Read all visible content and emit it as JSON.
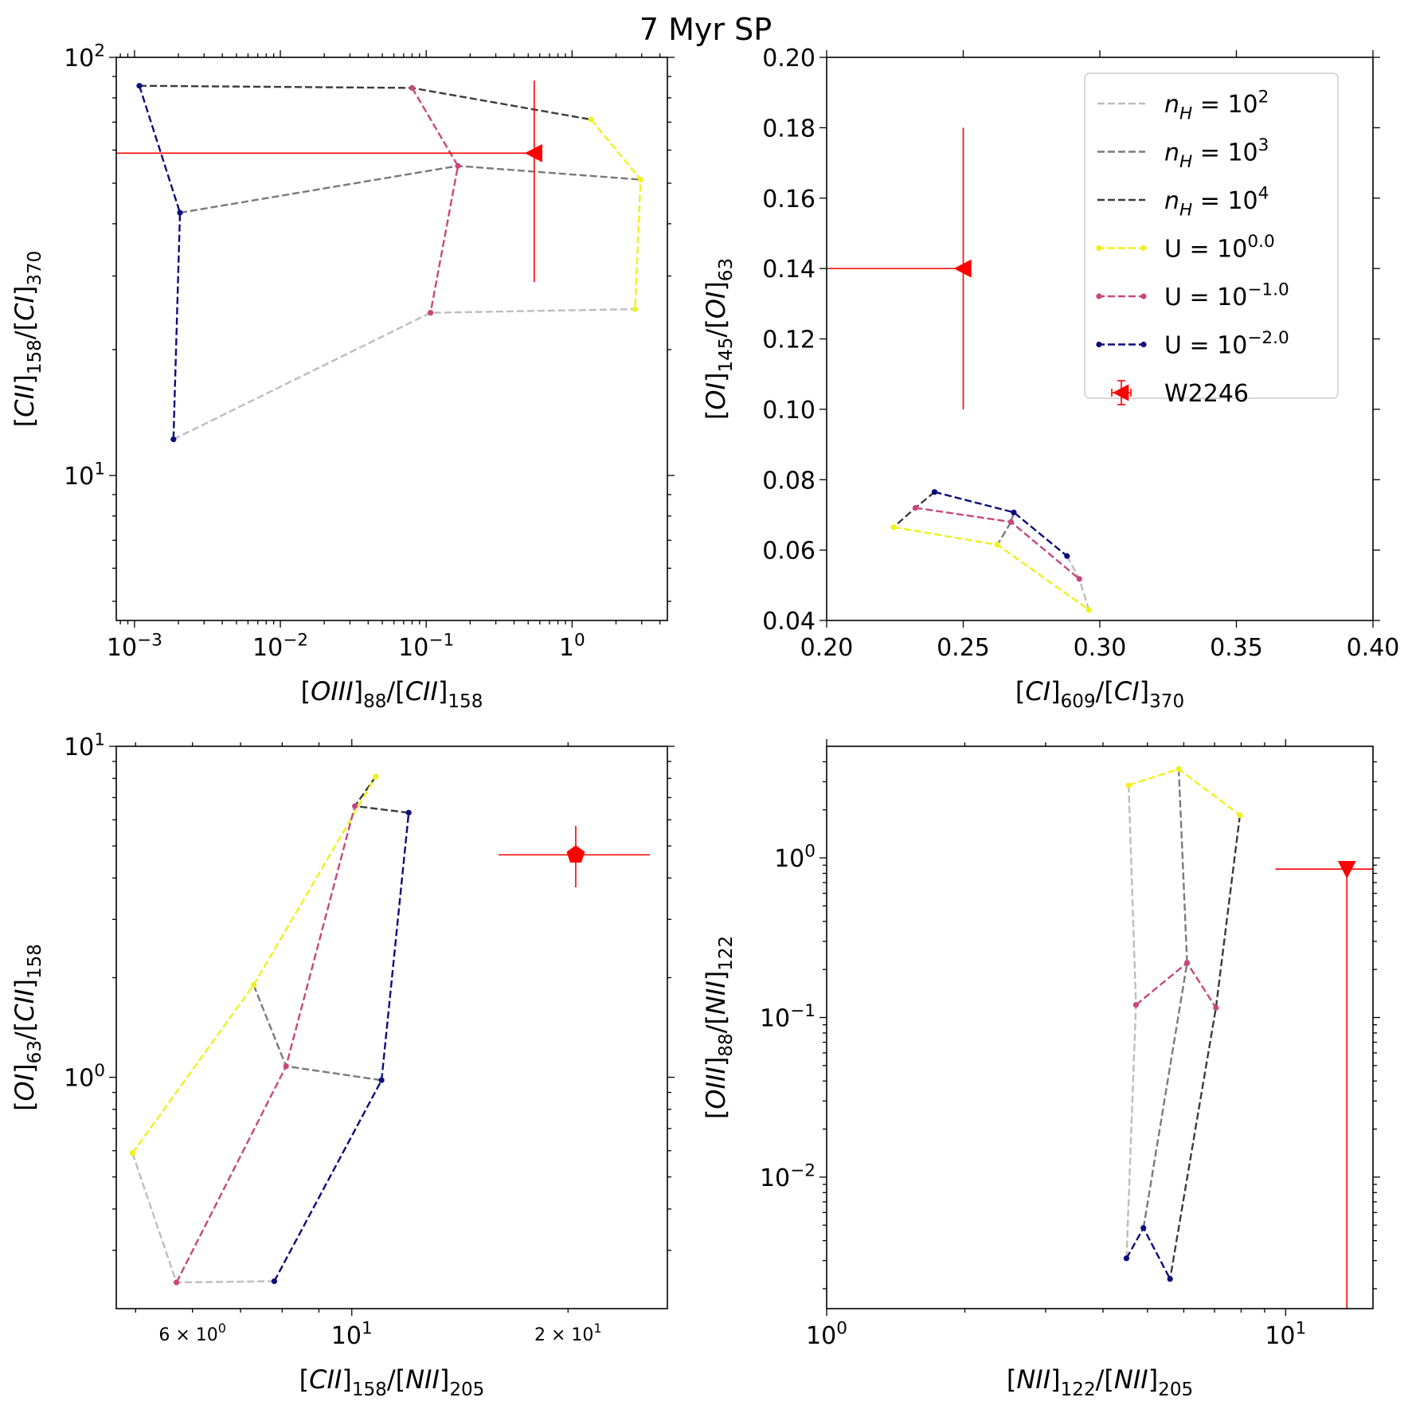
{
  "figure_title": "7 Myr SP",
  "chart_data": [
    {
      "id": "p1",
      "type": "line",
      "xscale": "log",
      "yscale": "log",
      "xlim": [
        0.00075,
        4.5
      ],
      "ylim": [
        4.5,
        100
      ],
      "xticks": [
        0.001,
        0.01,
        0.1,
        1
      ],
      "yticks": [
        10,
        100
      ],
      "xtick_labels": [
        [
          "10",
          "−3"
        ],
        [
          "10",
          "−2"
        ],
        [
          "10",
          "−1"
        ],
        [
          "1",
          "0"
        ]
      ],
      "ytick_labels": [
        [
          "10",
          "1"
        ],
        [
          "10",
          "2"
        ]
      ],
      "xlabel": [
        [
          "[",
          "n"
        ],
        [
          "OIII",
          "i"
        ],
        [
          "]",
          "n"
        ],
        [
          "88",
          "sub"
        ],
        [
          "/[",
          "n"
        ],
        [
          "CII",
          "i"
        ],
        [
          "]",
          "n"
        ],
        [
          "158",
          "sub"
        ]
      ],
      "ylabel": [
        [
          "[",
          "n"
        ],
        [
          "CII",
          "i"
        ],
        [
          "]",
          "n"
        ],
        [
          "158",
          "sub"
        ],
        [
          "/[",
          "n"
        ],
        [
          "CI",
          "i"
        ],
        [
          "]",
          "n"
        ],
        [
          "370",
          "sub"
        ]
      ],
      "lines": [
        {
          "group": "n",
          "color": "#bdbdbd",
          "points": [
            [
              0.00185,
              12.2
            ],
            [
              0.107,
              24.5
            ],
            [
              2.7,
              25.0
            ]
          ]
        },
        {
          "group": "n",
          "color": "#7a7a7a",
          "points": [
            [
              0.00205,
              42.5
            ],
            [
              0.165,
              55.0
            ],
            [
              2.95,
              51.0
            ]
          ]
        },
        {
          "group": "n",
          "color": "#3b3b3b",
          "points": [
            [
              0.00108,
              85.5
            ],
            [
              0.08,
              84.5
            ],
            [
              1.35,
              71.0
            ]
          ]
        },
        {
          "group": "U",
          "color": "#f0f01e",
          "points": [
            [
              1.35,
              71.0
            ],
            [
              2.95,
              51.0
            ],
            [
              2.7,
              25.0
            ]
          ]
        },
        {
          "group": "U",
          "color": "#c8477a",
          "points": [
            [
              0.08,
              84.5
            ],
            [
              0.165,
              55.0
            ],
            [
              0.107,
              24.5
            ]
          ]
        },
        {
          "group": "U",
          "color": "#0c0c7c",
          "points": [
            [
              0.00108,
              85.5
            ],
            [
              0.00205,
              42.5
            ],
            [
              0.00185,
              12.2
            ]
          ]
        }
      ],
      "obs": {
        "x": 0.55,
        "y": 59.0,
        "marker": "triangle-left",
        "xerr_lo": 0.00075,
        "xerr_hi": 0.55,
        "yerr_lo": 29.0,
        "yerr_hi": 88.0
      }
    },
    {
      "id": "p2",
      "type": "line",
      "xscale": "linear",
      "yscale": "linear",
      "xlim": [
        0.2,
        0.4
      ],
      "ylim": [
        0.04,
        0.2
      ],
      "xticks": [
        0.2,
        0.25,
        0.3,
        0.35,
        0.4
      ],
      "yticks": [
        0.04,
        0.06,
        0.08,
        0.1,
        0.12,
        0.14,
        0.16,
        0.18,
        0.2
      ],
      "xtick_labels": [
        [
          "0.20"
        ],
        [
          "0.25"
        ],
        [
          "0.30"
        ],
        [
          "0.35"
        ],
        [
          "0.40"
        ]
      ],
      "ytick_labels": [
        [
          "0.04"
        ],
        [
          "0.06"
        ],
        [
          "0.08"
        ],
        [
          "0.10"
        ],
        [
          "0.12"
        ],
        [
          "0.14"
        ],
        [
          "0.16"
        ],
        [
          "0.18"
        ],
        [
          "0.20"
        ]
      ],
      "xlabel": [
        [
          "[",
          "n"
        ],
        [
          "CI",
          "i"
        ],
        [
          "]",
          "n"
        ],
        [
          "609",
          "sub"
        ],
        [
          "/[",
          "n"
        ],
        [
          "CI",
          "i"
        ],
        [
          "]",
          "n"
        ],
        [
          "370",
          "sub"
        ]
      ],
      "ylabel": [
        [
          "[",
          "n"
        ],
        [
          "OI",
          "i"
        ],
        [
          "]",
          "n"
        ],
        [
          "145",
          "sub"
        ],
        [
          "/[",
          "n"
        ],
        [
          "OI",
          "i"
        ],
        [
          "]",
          "n"
        ],
        [
          "63",
          "sub"
        ]
      ],
      "lines": [
        {
          "group": "n",
          "color": "#bdbdbd",
          "points": [
            [
              0.288,
              0.0583
            ],
            [
              0.2925,
              0.0518
            ],
            [
              0.296,
              0.043
            ]
          ]
        },
        {
          "group": "n",
          "color": "#7a7a7a",
          "points": [
            [
              0.2685,
              0.0707
            ],
            [
              0.2675,
              0.068
            ],
            [
              0.2625,
              0.0615
            ]
          ]
        },
        {
          "group": "n",
          "color": "#3b3b3b",
          "points": [
            [
              0.2395,
              0.0765
            ],
            [
              0.2325,
              0.072
            ],
            [
              0.2245,
              0.0665
            ]
          ]
        },
        {
          "group": "U",
          "color": "#f0f01e",
          "points": [
            [
              0.2245,
              0.0665
            ],
            [
              0.2625,
              0.0615
            ],
            [
              0.296,
              0.043
            ]
          ]
        },
        {
          "group": "U",
          "color": "#c8477a",
          "points": [
            [
              0.2325,
              0.072
            ],
            [
              0.2675,
              0.068
            ],
            [
              0.2925,
              0.0518
            ]
          ]
        },
        {
          "group": "U",
          "color": "#0c0c7c",
          "points": [
            [
              0.2395,
              0.0765
            ],
            [
              0.2685,
              0.0707
            ],
            [
              0.288,
              0.0583
            ]
          ]
        }
      ],
      "obs": {
        "x": 0.25,
        "y": 0.14,
        "marker": "triangle-left",
        "xerr_lo": 0.2,
        "xerr_hi": 0.25,
        "yerr_lo": 0.1,
        "yerr_hi": 0.18
      },
      "legend": {
        "placement": "top-right",
        "entries": [
          {
            "kind": "line",
            "color": "#bdbdbd",
            "label": [
              [
                "n",
                "i"
              ],
              [
                "H",
                "sub-i"
              ],
              [
                " = 10",
                "n"
              ],
              [
                "2",
                "sup"
              ]
            ]
          },
          {
            "kind": "line",
            "color": "#7a7a7a",
            "label": [
              [
                "n",
                "i"
              ],
              [
                "H",
                "sub-i"
              ],
              [
                " = 10",
                "n"
              ],
              [
                "3",
                "sup"
              ]
            ]
          },
          {
            "kind": "line",
            "color": "#3b3b3b",
            "label": [
              [
                "n",
                "i"
              ],
              [
                "H",
                "sub-i"
              ],
              [
                " = 10",
                "n"
              ],
              [
                "4",
                "sup"
              ]
            ]
          },
          {
            "kind": "linepoint",
            "color": "#f0f01e",
            "label": [
              [
                "U = 10",
                "n"
              ],
              [
                "0.0",
                "sup"
              ]
            ]
          },
          {
            "kind": "linepoint",
            "color": "#c8477a",
            "label": [
              [
                "U = 10",
                "n"
              ],
              [
                "−1.0",
                "sup"
              ]
            ]
          },
          {
            "kind": "linepoint",
            "color": "#0c0c7c",
            "label": [
              [
                "U = 10",
                "n"
              ],
              [
                "−2.0",
                "sup"
              ]
            ]
          },
          {
            "kind": "obs",
            "color": "#ff0000",
            "label": [
              [
                "W2246",
                "n"
              ]
            ]
          }
        ]
      }
    },
    {
      "id": "p3",
      "type": "line",
      "xscale": "log",
      "yscale": "log",
      "xlim": [
        4.7,
        27.5
      ],
      "ylim": [
        0.2,
        10
      ],
      "xticks": [
        10
      ],
      "yticks": [
        1,
        10
      ],
      "xticks_minor": [
        6,
        20
      ],
      "xtick_labels": [
        [
          "10",
          "1"
        ]
      ],
      "xminor_labels": [
        [
          "6 × 10",
          "0"
        ],
        [
          "2 × 10",
          "1"
        ]
      ],
      "ytick_labels": [
        [
          "10",
          "0"
        ],
        [
          "10",
          "1"
        ]
      ],
      "xlabel": [
        [
          "[",
          "n"
        ],
        [
          "CII",
          "i"
        ],
        [
          "]",
          "n"
        ],
        [
          "158",
          "sub"
        ],
        [
          "/[",
          "n"
        ],
        [
          "NII",
          "i"
        ],
        [
          "]",
          "n"
        ],
        [
          "205",
          "sub"
        ]
      ],
      "ylabel": [
        [
          "[",
          "n"
        ],
        [
          "OI",
          "i"
        ],
        [
          "]",
          "n"
        ],
        [
          "63",
          "sub"
        ],
        [
          "/[",
          "n"
        ],
        [
          "CII",
          "i"
        ],
        [
          "]",
          "n"
        ],
        [
          "158",
          "sub"
        ]
      ],
      "lines": [
        {
          "group": "n",
          "color": "#bdbdbd",
          "points": [
            [
              4.95,
              0.59
            ],
            [
              5.7,
              0.24
            ],
            [
              7.8,
              0.242
            ]
          ]
        },
        {
          "group": "n",
          "color": "#7a7a7a",
          "points": [
            [
              7.3,
              1.9
            ],
            [
              8.1,
              1.08
            ],
            [
              11.0,
              0.98
            ]
          ]
        },
        {
          "group": "n",
          "color": "#3b3b3b",
          "points": [
            [
              10.8,
              8.1
            ],
            [
              10.1,
              6.6
            ],
            [
              12.0,
              6.3
            ]
          ]
        },
        {
          "group": "U",
          "color": "#f0f01e",
          "points": [
            [
              4.95,
              0.59
            ],
            [
              7.3,
              1.9
            ],
            [
              10.8,
              8.1
            ]
          ]
        },
        {
          "group": "U",
          "color": "#c8477a",
          "points": [
            [
              5.7,
              0.24
            ],
            [
              8.1,
              1.08
            ],
            [
              10.1,
              6.6
            ]
          ]
        },
        {
          "group": "U",
          "color": "#0c0c7c",
          "points": [
            [
              7.8,
              0.242
            ],
            [
              11.0,
              0.98
            ],
            [
              12.0,
              6.3
            ]
          ]
        }
      ],
      "obs": {
        "x": 20.5,
        "y": 4.7,
        "marker": "pentagon",
        "xerr_lo": 16.0,
        "xerr_hi": 26.0,
        "yerr_lo": 3.75,
        "yerr_hi": 5.75
      }
    },
    {
      "id": "p4",
      "type": "line",
      "xscale": "log",
      "yscale": "log",
      "xlim": [
        1,
        15.5
      ],
      "ylim": [
        0.0015,
        5
      ],
      "xticks": [
        1,
        10
      ],
      "yticks": [
        0.01,
        0.1,
        1
      ],
      "xtick_labels": [
        [
          "10",
          "0"
        ],
        [
          "10",
          "1"
        ]
      ],
      "ytick_labels": [
        [
          "10",
          "−2"
        ],
        [
          "10",
          "−1"
        ],
        [
          "10",
          "0"
        ]
      ],
      "xlabel": [
        [
          "[",
          "n"
        ],
        [
          "NII",
          "i"
        ],
        [
          "]",
          "n"
        ],
        [
          "122",
          "sub"
        ],
        [
          "/[",
          "n"
        ],
        [
          "NII",
          "i"
        ],
        [
          "]",
          "n"
        ],
        [
          "205",
          "sub"
        ]
      ],
      "ylabel": [
        [
          "[",
          "n"
        ],
        [
          "OIII",
          "i"
        ],
        [
          "]",
          "n"
        ],
        [
          "88",
          "sub"
        ],
        [
          "/[",
          "n"
        ],
        [
          "NII",
          "i"
        ],
        [
          "]",
          "n"
        ],
        [
          "122",
          "sub"
        ]
      ],
      "lines": [
        {
          "group": "n",
          "color": "#bdbdbd",
          "points": [
            [
              4.55,
              2.85
            ],
            [
              4.72,
              0.12
            ],
            [
              4.5,
              0.0031
            ]
          ]
        },
        {
          "group": "n",
          "color": "#7a7a7a",
          "points": [
            [
              5.85,
              3.6
            ],
            [
              6.1,
              0.22
            ],
            [
              4.9,
              0.0048
            ]
          ]
        },
        {
          "group": "n",
          "color": "#3b3b3b",
          "points": [
            [
              7.95,
              1.85
            ],
            [
              7.05,
              0.115
            ],
            [
              5.6,
              0.0023
            ]
          ]
        },
        {
          "group": "U",
          "color": "#f0f01e",
          "points": [
            [
              4.55,
              2.85
            ],
            [
              5.85,
              3.6
            ],
            [
              7.95,
              1.85
            ]
          ]
        },
        {
          "group": "U",
          "color": "#c8477a",
          "points": [
            [
              4.72,
              0.12
            ],
            [
              6.1,
              0.22
            ],
            [
              7.05,
              0.115
            ]
          ]
        },
        {
          "group": "U",
          "color": "#0c0c7c",
          "points": [
            [
              4.5,
              0.0031
            ],
            [
              4.9,
              0.0048
            ],
            [
              5.6,
              0.0023
            ]
          ]
        }
      ],
      "obs": {
        "x": 13.6,
        "y": 0.85,
        "marker": "triangle-down",
        "xerr_lo": 9.5,
        "xerr_hi": 15.5,
        "yerr_lo": 0.0015,
        "yerr_hi": 0.85
      }
    }
  ]
}
